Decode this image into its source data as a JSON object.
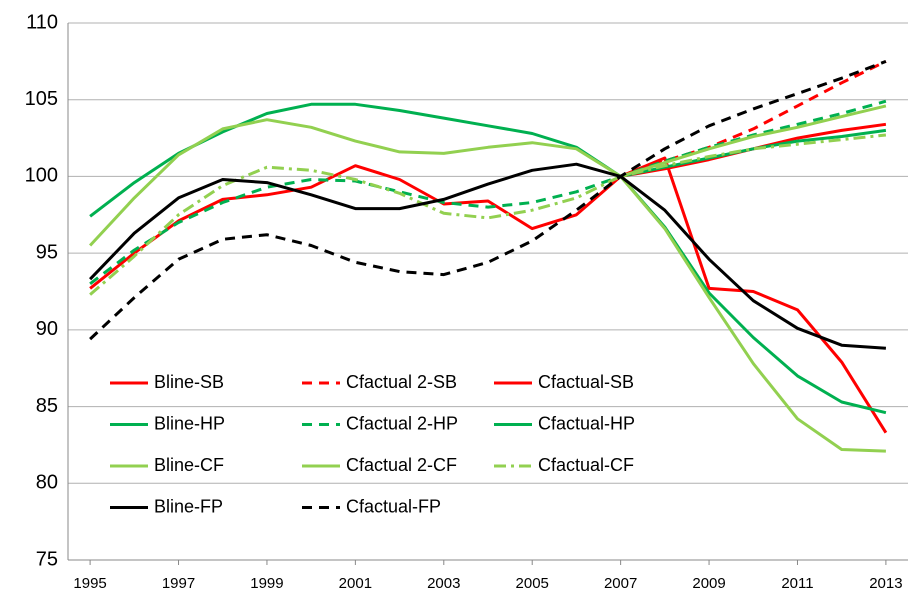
{
  "chart_data": {
    "type": "line",
    "x": [
      1995,
      1996,
      1997,
      1998,
      1999,
      2000,
      2001,
      2002,
      2003,
      2004,
      2005,
      2006,
      2007,
      2008,
      2009,
      2010,
      2011,
      2012,
      2013
    ],
    "xlim": [
      1994.5,
      2013.5
    ],
    "xticks": [
      1995,
      1997,
      1999,
      2001,
      2003,
      2005,
      2007,
      2009,
      2011,
      2013
    ],
    "ylim": [
      75,
      110
    ],
    "yticks": [
      75,
      80,
      85,
      90,
      95,
      100,
      105,
      110
    ],
    "grid": true,
    "legend": "lower-left",
    "series": [
      {
        "name": "Bline-SB",
        "color": "#ff0000",
        "dash": "solid",
        "values": [
          92.7,
          95.0,
          97.1,
          98.5,
          98.8,
          99.3,
          100.7,
          99.8,
          98.2,
          98.4,
          96.6,
          97.5,
          100,
          101.2,
          92.7,
          92.5,
          91.3,
          87.9,
          83.3
        ]
      },
      {
        "name": "Cfactual 2-SB",
        "color": "#ff0000",
        "dash": "dashed",
        "values": [
          null,
          null,
          null,
          null,
          null,
          null,
          null,
          null,
          null,
          null,
          null,
          null,
          100,
          101.0,
          101.9,
          103.1,
          104.6,
          106.1,
          107.5
        ]
      },
      {
        "name": "Cfactual-SB",
        "color": "#ff0000",
        "dash": "solid",
        "values": [
          null,
          null,
          null,
          null,
          null,
          null,
          null,
          null,
          null,
          null,
          null,
          null,
          100,
          100.5,
          101.1,
          101.8,
          102.5,
          103.0,
          103.4
        ]
      },
      {
        "name": "Bline-HP",
        "color": "#00b050",
        "dash": "solid",
        "values": [
          97.4,
          99.6,
          101.5,
          102.9,
          104.1,
          104.7,
          104.7,
          104.3,
          103.8,
          103.3,
          102.8,
          101.9,
          100,
          96.7,
          92.4,
          89.5,
          87.0,
          85.3,
          84.6
        ]
      },
      {
        "name": "Cfactual 2-HP",
        "color": "#00b050",
        "dash": "dashed",
        "values": [
          93.0,
          95.2,
          97.0,
          98.3,
          99.3,
          99.8,
          99.7,
          99.0,
          98.3,
          98.0,
          98.3,
          99.0,
          100,
          101.0,
          101.9,
          102.7,
          103.4,
          104.1,
          104.9
        ]
      },
      {
        "name": "Cfactual-HP",
        "color": "#00b050",
        "dash": "solid",
        "values": [
          null,
          null,
          null,
          null,
          null,
          null,
          null,
          null,
          null,
          null,
          null,
          null,
          100,
          100.6,
          101.2,
          101.8,
          102.3,
          102.6,
          103.0
        ]
      },
      {
        "name": "Bline-CF",
        "color": "#92d050",
        "dash": "solid",
        "values": [
          95.5,
          98.6,
          101.4,
          103.1,
          103.7,
          103.2,
          102.3,
          101.6,
          101.5,
          101.9,
          102.2,
          101.8,
          100,
          96.6,
          92.1,
          87.8,
          84.2,
          82.2,
          82.1
        ]
      },
      {
        "name": "Cfactual 2-CF",
        "color": "#92d050",
        "dash": "solid",
        "values": [
          null,
          null,
          null,
          null,
          null,
          null,
          null,
          null,
          null,
          null,
          null,
          null,
          100,
          100.9,
          101.8,
          102.6,
          103.2,
          103.9,
          104.6
        ]
      },
      {
        "name": "Cfactual-CF",
        "color": "#92d050",
        "dash": "dashdot",
        "values": [
          92.3,
          94.8,
          97.5,
          99.4,
          100.6,
          100.4,
          99.8,
          98.9,
          97.6,
          97.3,
          97.8,
          98.6,
          100,
          100.7,
          101.3,
          101.8,
          102.1,
          102.4,
          102.7
        ]
      },
      {
        "name": "Bline-FP",
        "color": "#000000",
        "dash": "solid",
        "values": [
          93.3,
          96.3,
          98.6,
          99.8,
          99.6,
          98.8,
          97.9,
          97.9,
          98.5,
          99.5,
          100.4,
          100.8,
          100,
          97.8,
          94.6,
          91.9,
          90.1,
          89.0,
          88.8
        ]
      },
      {
        "name": "Cfactual-FP",
        "color": "#000000",
        "dash": "dashed",
        "values": [
          89.4,
          92.1,
          94.6,
          95.9,
          96.2,
          95.5,
          94.4,
          93.8,
          93.6,
          94.4,
          95.8,
          97.8,
          100,
          101.8,
          103.3,
          104.4,
          105.4,
          106.4,
          107.5
        ]
      }
    ]
  }
}
